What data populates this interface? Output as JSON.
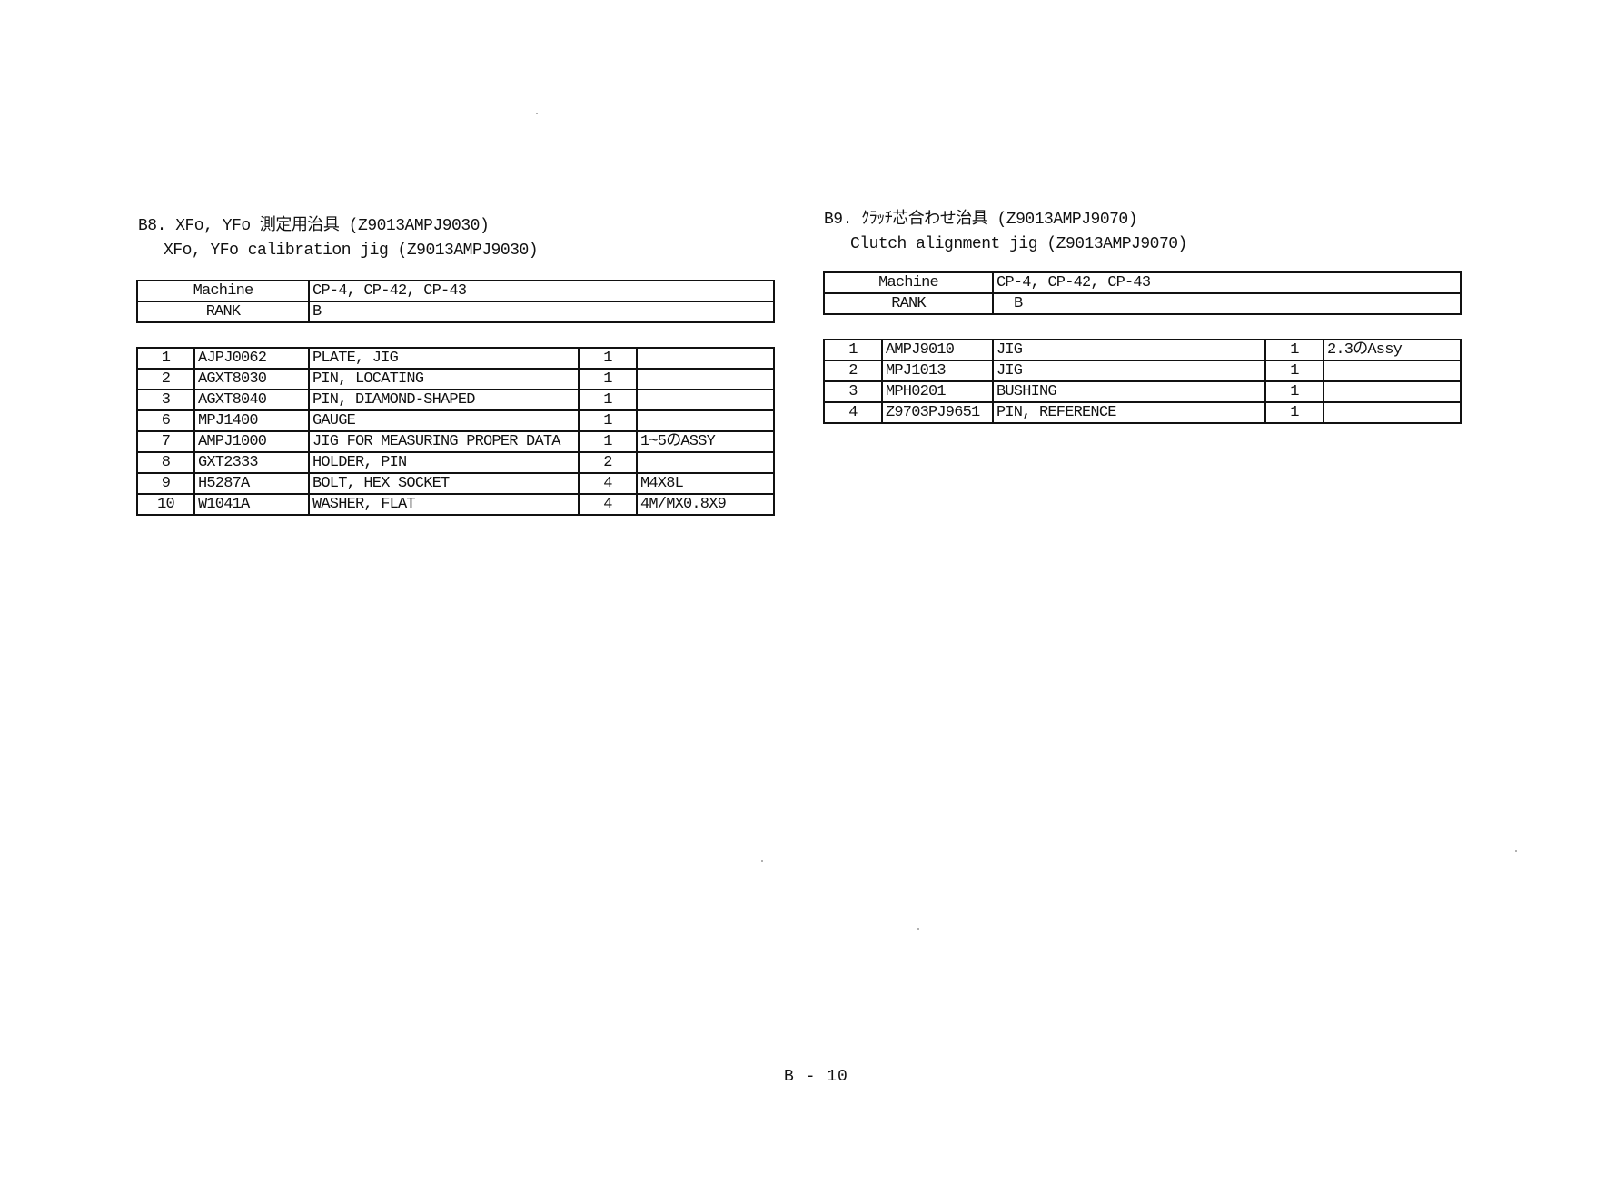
{
  "sections": [
    {
      "title_ja": "B8. XFo, YFo 測定用治具 (Z9013AMPJ9030)",
      "title_en": "XFo, YFo calibration jig (Z9013AMPJ9030)",
      "info": {
        "machine_label": "Machine",
        "machine_value": "CP-4, CP-42, CP-43",
        "rank_label": "RANK",
        "rank_value": "B"
      },
      "parts": [
        {
          "no": "1",
          "code": "AJPJ0062",
          "name": "PLATE, JIG",
          "qty": "1",
          "note": ""
        },
        {
          "no": "2",
          "code": "AGXT8030",
          "name": "PIN, LOCATING",
          "qty": "1",
          "note": ""
        },
        {
          "no": "3",
          "code": "AGXT8040",
          "name": "PIN, DIAMOND-SHAPED",
          "qty": "1",
          "note": ""
        },
        {
          "no": "6",
          "code": "MPJ1400",
          "name": "GAUGE",
          "qty": "1",
          "note": ""
        },
        {
          "no": "7",
          "code": "AMPJ1000",
          "name": "JIG FOR MEASURING PROPER DATA",
          "qty": "1",
          "note": "1~5のASSY"
        },
        {
          "no": "8",
          "code": "GXT2333",
          "name": "HOLDER, PIN",
          "qty": "2",
          "note": ""
        },
        {
          "no": "9",
          "code": "H5287A",
          "name": "BOLT, HEX SOCKET",
          "qty": "4",
          "note": "M4X8L"
        },
        {
          "no": "10",
          "code": "W1041A",
          "name": "WASHER, FLAT",
          "qty": "4",
          "note": "4M/MX0.8X9"
        }
      ]
    },
    {
      "title_ja": "B9. ｸﾗｯﾁ芯合わせ治具 (Z9013AMPJ9070)",
      "title_en": "Clutch alignment jig (Z9013AMPJ9070)",
      "info": {
        "machine_label": "Machine",
        "machine_value": "CP-4, CP-42, CP-43",
        "rank_label": "RANK",
        "rank_value": "B"
      },
      "parts": [
        {
          "no": "1",
          "code": "AMPJ9010",
          "name": "JIG",
          "qty": "1",
          "note": "2.3のAssy"
        },
        {
          "no": "2",
          "code": "MPJ1013",
          "name": "JIG",
          "qty": "1",
          "note": ""
        },
        {
          "no": "3",
          "code": "MPH0201",
          "name": "BUSHING",
          "qty": "1",
          "note": ""
        },
        {
          "no": "4",
          "code": "Z9703PJ9651",
          "name": "PIN, REFERENCE",
          "qty": "1",
          "note": ""
        }
      ]
    }
  ],
  "footer": {
    "page": "B - 10"
  }
}
